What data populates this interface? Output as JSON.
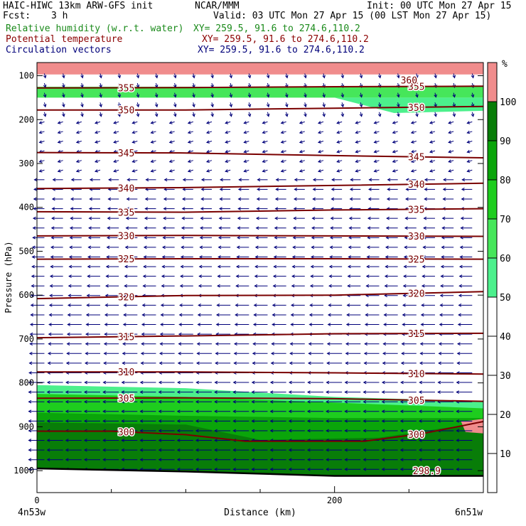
{
  "header": {
    "model": "HAIC-HIWC 13km ARW-GFS init",
    "org": "NCAR/MMM",
    "init": "Init: 00 UTC Mon 27 Apr 15",
    "fcst_label": "Fcst:",
    "fcst_value": "3 h",
    "valid": "Valid: 03 UTC Mon 27 Apr 15 (00 LST Mon 27 Apr 15)",
    "fields": [
      {
        "name": "Relative humidity (w.r.t. water)",
        "xy": "XY= 259.5, 91.6 to 274.6,110.2",
        "color": "#1a8a1a"
      },
      {
        "name": "Potential temperature",
        "xy": "XY= 259.5, 91.6 to 274.6,110.2",
        "color": "#8b0000"
      },
      {
        "name": "Circulation vectors",
        "xy": "XY= 259.5, 91.6 to 274.6,110.2",
        "color": "#00007a"
      }
    ]
  },
  "chart_data": {
    "type": "cross-section",
    "xlabel": "Distance (km)",
    "ylabel": "Pressure (hPa)",
    "xlim": [
      0,
      300
    ],
    "ylim": [
      1050,
      70
    ],
    "x_ticks": [
      0,
      200
    ],
    "x_minor_ticks": [
      50,
      100,
      150,
      250
    ],
    "y_ticks": [
      100,
      200,
      300,
      400,
      500,
      600,
      700,
      800,
      900,
      1000
    ],
    "left_endpoint": "4n53w",
    "right_endpoint": "6n51w",
    "colorbar": {
      "unit": "%",
      "levels": [
        10,
        20,
        30,
        40,
        50,
        60,
        70,
        80,
        90,
        100
      ],
      "colors": [
        "#ffffff",
        "#ffffff",
        "#ffffff",
        "#ffffff",
        "#ffffff",
        "#4cf08c",
        "#46e65a",
        "#1ecd1e",
        "#0aa50a",
        "#087d08",
        "#f08c8c"
      ]
    },
    "theta_contours": [
      {
        "value": 355,
        "label": "355",
        "points": [
          [
            0,
            128
          ],
          [
            100,
            127
          ],
          [
            200,
            125
          ],
          [
            300,
            124
          ]
        ]
      },
      {
        "value": 350,
        "label": "350",
        "points": [
          [
            0,
            178
          ],
          [
            100,
            178
          ],
          [
            200,
            174
          ],
          [
            300,
            170
          ]
        ]
      },
      {
        "value": 345,
        "label": "345",
        "points": [
          [
            0,
            275
          ],
          [
            100,
            276
          ],
          [
            200,
            282
          ],
          [
            300,
            287
          ]
        ]
      },
      {
        "value": 340,
        "label": "340",
        "points": [
          [
            0,
            357
          ],
          [
            100,
            355
          ],
          [
            200,
            350
          ],
          [
            300,
            345
          ]
        ]
      },
      {
        "value": 335,
        "label": "335",
        "points": [
          [
            0,
            410
          ],
          [
            100,
            411
          ],
          [
            200,
            406
          ],
          [
            300,
            403
          ]
        ]
      },
      {
        "value": 330,
        "label": "330",
        "points": [
          [
            0,
            465
          ],
          [
            100,
            464
          ],
          [
            200,
            465
          ],
          [
            300,
            466
          ]
        ]
      },
      {
        "value": 325,
        "label": "325",
        "points": [
          [
            0,
            518
          ],
          [
            100,
            517
          ],
          [
            200,
            517
          ],
          [
            300,
            518
          ]
        ]
      },
      {
        "value": 320,
        "label": "320",
        "points": [
          [
            0,
            608
          ],
          [
            100,
            601
          ],
          [
            200,
            600
          ],
          [
            300,
            592
          ]
        ]
      },
      {
        "value": 315,
        "label": "315",
        "points": [
          [
            0,
            697
          ],
          [
            100,
            693
          ],
          [
            200,
            688
          ],
          [
            300,
            687
          ]
        ]
      },
      {
        "value": 310,
        "label": "310",
        "points": [
          [
            0,
            775
          ],
          [
            100,
            775
          ],
          [
            200,
            777
          ],
          [
            300,
            780
          ]
        ]
      },
      {
        "value": 305,
        "label": "305",
        "points": [
          [
            0,
            835
          ],
          [
            100,
            834
          ],
          [
            200,
            836
          ],
          [
            300,
            842
          ]
        ]
      },
      {
        "value": 300,
        "label": "300",
        "points": [
          [
            0,
            910
          ],
          [
            50,
            910
          ],
          [
            100,
            918
          ],
          [
            140,
            933
          ],
          [
            220,
            933
          ],
          [
            260,
            915
          ],
          [
            300,
            888
          ]
        ]
      }
    ],
    "other_labels": [
      {
        "text": "298.9",
        "x": 262,
        "p": 1000
      },
      {
        "text": "360",
        "x": 250,
        "p": 110
      }
    ],
    "rh_regions": [
      {
        "rh": 100,
        "points": [
          [
            0,
            70
          ],
          [
            300,
            70
          ],
          [
            300,
            97
          ],
          [
            0,
            97
          ]
        ]
      },
      {
        "rh": 60,
        "points": [
          [
            0,
            125
          ],
          [
            300,
            125
          ],
          [
            300,
            150
          ],
          [
            0,
            150
          ]
        ]
      },
      {
        "rh": 55,
        "points": [
          [
            0,
            150
          ],
          [
            200,
            150
          ],
          [
            240,
            185
          ],
          [
            300,
            180
          ],
          [
            300,
            150
          ]
        ]
      },
      {
        "rh": 55,
        "points": [
          [
            0,
            805
          ],
          [
            100,
            812
          ],
          [
            200,
            832
          ],
          [
            300,
            842
          ],
          [
            300,
            1050
          ],
          [
            0,
            1050
          ]
        ]
      },
      {
        "rh": 75,
        "points": [
          [
            0,
            825
          ],
          [
            100,
            832
          ],
          [
            200,
            845
          ],
          [
            300,
            858
          ],
          [
            300,
            1050
          ],
          [
            0,
            1050
          ]
        ]
      },
      {
        "rh": 85,
        "points": [
          [
            0,
            868
          ],
          [
            100,
            875
          ],
          [
            200,
            880
          ],
          [
            300,
            880
          ],
          [
            300,
            1050
          ],
          [
            0,
            1050
          ]
        ]
      },
      {
        "rh": 95,
        "points": [
          [
            0,
            890
          ],
          [
            100,
            895
          ],
          [
            150,
            930
          ],
          [
            230,
            925
          ],
          [
            300,
            890
          ],
          [
            300,
            1050
          ],
          [
            0,
            1050
          ]
        ]
      },
      {
        "rh": 100,
        "points": [
          [
            285,
            888
          ],
          [
            300,
            882
          ],
          [
            300,
            915
          ],
          [
            288,
            912
          ]
        ]
      }
    ],
    "terrain": [
      [
        0,
        995
      ],
      [
        100,
        1002
      ],
      [
        200,
        1012
      ],
      [
        300,
        1012
      ]
    ]
  }
}
